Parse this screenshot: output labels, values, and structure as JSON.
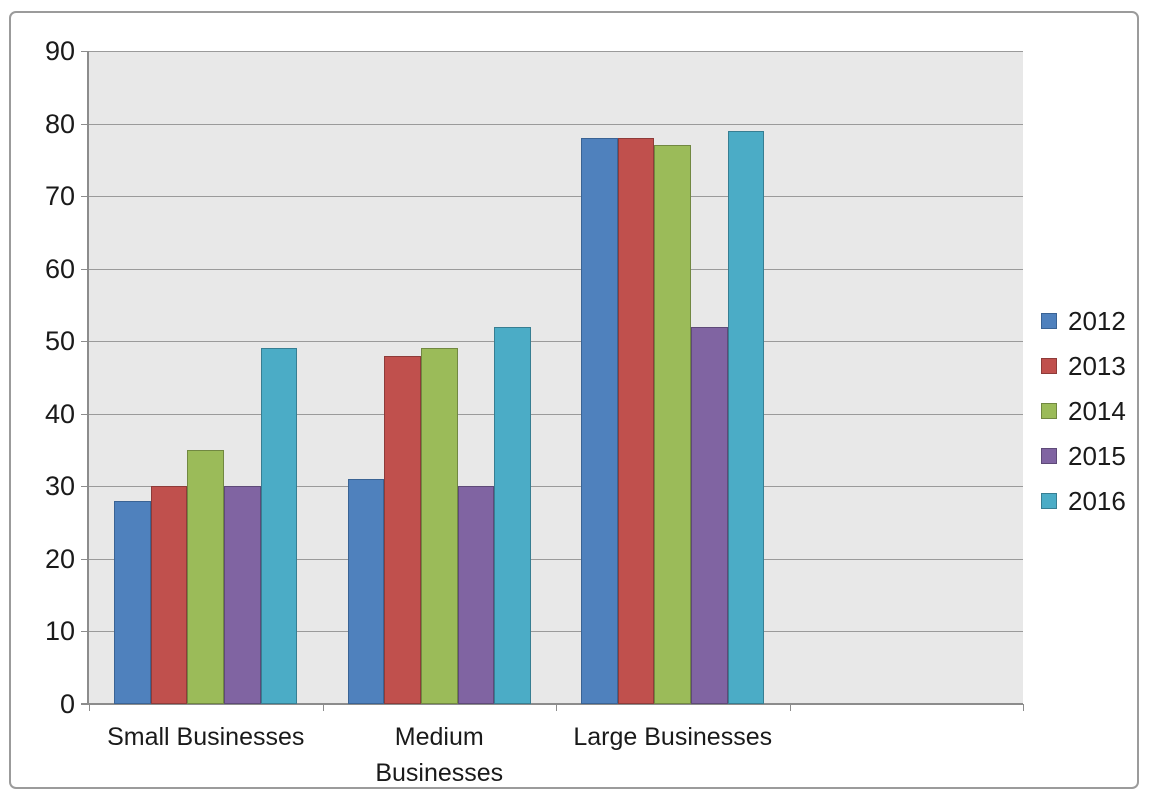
{
  "chart_data": {
    "type": "bar",
    "title": "",
    "xlabel": "",
    "ylabel": "",
    "categories": [
      "Small Businesses",
      "Medium Businesses",
      "Large Businesses"
    ],
    "category_label_lines": [
      [
        "Small Businesses"
      ],
      [
        "Medium",
        "Businesses"
      ],
      [
        "Large Businesses"
      ]
    ],
    "series": [
      {
        "name": "2012",
        "color": "#4F81BD",
        "border_color": "#3A6394",
        "values": [
          28,
          31,
          78
        ]
      },
      {
        "name": "2013",
        "color": "#C0504D",
        "border_color": "#8E3B39",
        "values": [
          30,
          48,
          78
        ]
      },
      {
        "name": "2014",
        "color": "#9BBB59",
        "border_color": "#718841",
        "values": [
          35,
          49,
          77
        ]
      },
      {
        "name": "2015",
        "color": "#8064A2",
        "border_color": "#5E4A78",
        "values": [
          30,
          30,
          52
        ]
      },
      {
        "name": "2016",
        "color": "#4BACC6",
        "border_color": "#377E92",
        "values": [
          49,
          52,
          79
        ]
      }
    ],
    "ylim": [
      0,
      90
    ],
    "yticks": [
      0,
      10,
      20,
      30,
      40,
      50,
      60,
      70,
      80,
      90
    ],
    "grid": true,
    "legend_position": "right",
    "x_slots": 4,
    "plot_background": "#E8E8E8",
    "gridline_color": "#9A9A9A",
    "axis_color": "#8C8C8C",
    "frame_border_color": "#9B9B9B",
    "text_color": "#1A1A1A"
  }
}
